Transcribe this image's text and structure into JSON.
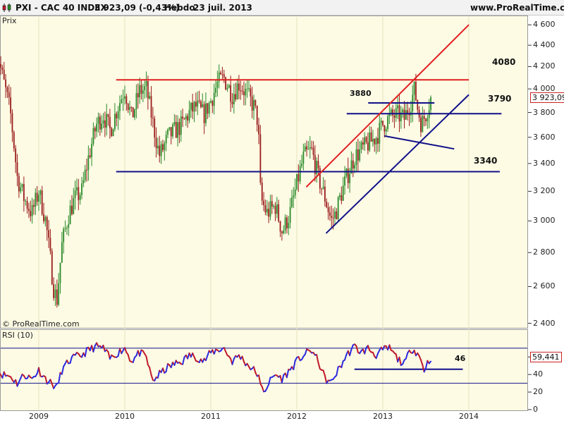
{
  "header": {
    "symbol": "PXI - CAC 40 INDEX",
    "last_quote": "3 923,09 (-0,43%)",
    "period": "Hebdo",
    "date": "23 juil. 2013",
    "site": "www.ProRealTime.com"
  },
  "colors": {
    "background": "#fdfbe4",
    "bull_candle": "#2a8a2a",
    "bear_candle": "#9a1b1b",
    "resistance_line": "#e02020",
    "support_line": "#10108a",
    "rsi_up": "#2a2ae0",
    "rsi_down": "#c01a2a"
  },
  "price_panel": {
    "label": "Prix",
    "watermark": "© ProRealTime.com",
    "y_ticks": [
      "4 600",
      "4 400",
      "4 200",
      "4 000",
      "3 800",
      "3 600",
      "3 400",
      "3 200",
      "3 000",
      "2 800",
      "2 600",
      "2 400"
    ],
    "levels": [
      {
        "text": "4080"
      },
      {
        "text": "3880"
      },
      {
        "text": "3790"
      },
      {
        "text": "3340"
      }
    ],
    "last_price_badge": "3 923,09"
  },
  "rsi_panel": {
    "label": "RSI (10)",
    "y_ticks": [
      "60",
      "40",
      "20",
      "0"
    ],
    "level_text": "46",
    "last_value_badge": "59,441"
  },
  "x_axis": [
    "2009",
    "2010",
    "2011",
    "2012",
    "2013",
    "2014"
  ],
  "chart_data": [
    {
      "type": "candlestick",
      "title": "PXI - CAC 40 INDEX",
      "period": "weekly",
      "y_scale": "log",
      "ylim": [
        2380,
        4680
      ],
      "xlim": [
        2008.5,
        2014.25
      ],
      "x_ticks": [
        2009,
        2010,
        2011,
        2012,
        2013,
        2014
      ],
      "close_path": [
        [
          2008.5,
          4400
        ],
        [
          2008.58,
          4100
        ],
        [
          2008.67,
          3800
        ],
        [
          2008.75,
          3300
        ],
        [
          2008.83,
          3150
        ],
        [
          2008.92,
          3050
        ],
        [
          2009.0,
          3200
        ],
        [
          2009.08,
          3000
        ],
        [
          2009.17,
          2600
        ],
        [
          2009.21,
          2520
        ],
        [
          2009.27,
          2850
        ],
        [
          2009.35,
          3050
        ],
        [
          2009.42,
          3150
        ],
        [
          2009.5,
          3200
        ],
        [
          2009.58,
          3450
        ],
        [
          2009.67,
          3700
        ],
        [
          2009.75,
          3780
        ],
        [
          2009.83,
          3650
        ],
        [
          2009.92,
          3850
        ],
        [
          2010.0,
          4000
        ],
        [
          2010.08,
          3750
        ],
        [
          2010.17,
          3980
        ],
        [
          2010.25,
          4000
        ],
        [
          2010.33,
          3700
        ],
        [
          2010.4,
          3460
        ],
        [
          2010.45,
          3520
        ],
        [
          2010.5,
          3600
        ],
        [
          2010.58,
          3650
        ],
        [
          2010.67,
          3700
        ],
        [
          2010.75,
          3800
        ],
        [
          2010.83,
          3850
        ],
        [
          2010.92,
          3780
        ],
        [
          2011.0,
          3900
        ],
        [
          2011.08,
          4050
        ],
        [
          2011.15,
          4100
        ],
        [
          2011.25,
          3950
        ],
        [
          2011.33,
          4050
        ],
        [
          2011.42,
          3950
        ],
        [
          2011.5,
          3850
        ],
        [
          2011.55,
          3720
        ],
        [
          2011.58,
          3150
        ],
        [
          2011.65,
          3050
        ],
        [
          2011.75,
          3100
        ],
        [
          2011.83,
          2930
        ],
        [
          2011.92,
          3050
        ],
        [
          2012.0,
          3250
        ],
        [
          2012.08,
          3450
        ],
        [
          2012.17,
          3500
        ],
        [
          2012.25,
          3300
        ],
        [
          2012.33,
          3150
        ],
        [
          2012.4,
          3000
        ],
        [
          2012.45,
          3050
        ],
        [
          2012.5,
          3150
        ],
        [
          2012.58,
          3300
        ],
        [
          2012.67,
          3450
        ],
        [
          2012.75,
          3500
        ],
        [
          2012.83,
          3550
        ],
        [
          2012.92,
          3600
        ],
        [
          2013.0,
          3700
        ],
        [
          2013.08,
          3760
        ],
        [
          2013.17,
          3780
        ],
        [
          2013.25,
          3750
        ],
        [
          2013.33,
          3900
        ],
        [
          2013.37,
          4000
        ],
        [
          2013.4,
          3850
        ],
        [
          2013.45,
          3700
        ],
        [
          2013.5,
          3790
        ],
        [
          2013.56,
          3923.09
        ]
      ],
      "lines": [
        {
          "name": "4080",
          "kind": "horizontal",
          "color": "#e02020",
          "from": [
            2009.9,
            4080
          ],
          "to": [
            2014.0,
            4080
          ]
        },
        {
          "name": "3880",
          "kind": "horizontal",
          "color": "#10108a",
          "from": [
            2012.83,
            3880
          ],
          "to": [
            2013.6,
            3880
          ]
        },
        {
          "name": "3790",
          "kind": "horizontal",
          "color": "#10108a",
          "from": [
            2012.58,
            3790
          ],
          "to": [
            2014.38,
            3790
          ]
        },
        {
          "name": "3340",
          "kind": "horizontal",
          "color": "#10108a",
          "from": [
            2009.9,
            3340
          ],
          "to": [
            2014.36,
            3340
          ]
        },
        {
          "name": "",
          "kind": "trend",
          "color": "#e02020",
          "from": [
            2012.11,
            3230
          ],
          "to": [
            2014.0,
            4600
          ]
        },
        {
          "name": "",
          "kind": "trend",
          "color": "#10108a",
          "from": [
            2012.34,
            2920
          ],
          "to": [
            2014.0,
            3950
          ]
        },
        {
          "name": "",
          "kind": "trend",
          "color": "#10108a",
          "from": [
            2013.02,
            3610
          ],
          "to": [
            2013.83,
            3510
          ]
        }
      ]
    },
    {
      "type": "line",
      "title": "RSI (10)",
      "ylim": [
        0,
        90
      ],
      "levels": [
        70,
        30
      ],
      "support_level": 46,
      "last_value": 59.441,
      "points": [
        [
          2008.5,
          45
        ],
        [
          2008.58,
          40
        ],
        [
          2008.67,
          38
        ],
        [
          2008.75,
          30
        ],
        [
          2008.83,
          40
        ],
        [
          2008.92,
          35
        ],
        [
          2009.0,
          45
        ],
        [
          2009.08,
          35
        ],
        [
          2009.17,
          28
        ],
        [
          2009.21,
          25
        ],
        [
          2009.27,
          45
        ],
        [
          2009.35,
          55
        ],
        [
          2009.42,
          60
        ],
        [
          2009.5,
          62
        ],
        [
          2009.58,
          68
        ],
        [
          2009.67,
          72
        ],
        [
          2009.75,
          70
        ],
        [
          2009.83,
          58
        ],
        [
          2009.92,
          65
        ],
        [
          2010.0,
          70
        ],
        [
          2010.08,
          55
        ],
        [
          2010.17,
          65
        ],
        [
          2010.25,
          60
        ],
        [
          2010.3,
          40
        ],
        [
          2010.33,
          33
        ],
        [
          2010.4,
          40
        ],
        [
          2010.5,
          48
        ],
        [
          2010.58,
          52
        ],
        [
          2010.67,
          55
        ],
        [
          2010.75,
          62
        ],
        [
          2010.83,
          60
        ],
        [
          2010.92,
          55
        ],
        [
          2011.0,
          65
        ],
        [
          2011.08,
          68
        ],
        [
          2011.15,
          70
        ],
        [
          2011.25,
          55
        ],
        [
          2011.33,
          62
        ],
        [
          2011.42,
          52
        ],
        [
          2011.5,
          45
        ],
        [
          2011.55,
          40
        ],
        [
          2011.58,
          25
        ],
        [
          2011.63,
          22
        ],
        [
          2011.67,
          30
        ],
        [
          2011.75,
          40
        ],
        [
          2011.83,
          35
        ],
        [
          2011.92,
          45
        ],
        [
          2012.0,
          55
        ],
        [
          2012.08,
          62
        ],
        [
          2012.17,
          68
        ],
        [
          2012.25,
          55
        ],
        [
          2012.33,
          35
        ],
        [
          2012.4,
          30
        ],
        [
          2012.45,
          40
        ],
        [
          2012.5,
          48
        ],
        [
          2012.58,
          62
        ],
        [
          2012.67,
          72
        ],
        [
          2012.75,
          65
        ],
        [
          2012.83,
          70
        ],
        [
          2012.92,
          62
        ],
        [
          2013.0,
          68
        ],
        [
          2013.08,
          70
        ],
        [
          2013.17,
          58
        ],
        [
          2013.25,
          52
        ],
        [
          2013.33,
          70
        ],
        [
          2013.4,
          65
        ],
        [
          2013.45,
          55
        ],
        [
          2013.48,
          45
        ],
        [
          2013.5,
          50
        ],
        [
          2013.56,
          59.441
        ]
      ]
    }
  ]
}
